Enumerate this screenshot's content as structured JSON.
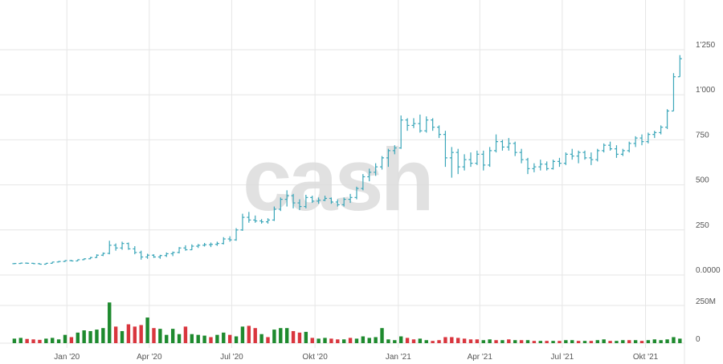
{
  "watermark": "cash",
  "colors": {
    "price": "#3aa6b9",
    "volume_up": "#1e8a2e",
    "volume_down": "#d9363e",
    "grid": "#e6e6e6",
    "text": "#555555"
  },
  "chart_data": {
    "type": "ohlc",
    "grid": true,
    "price_axis": {
      "ticks": [
        {
          "value": 0,
          "label": "0.0000"
        },
        {
          "value": 250,
          "label": "250"
        },
        {
          "value": 500,
          "label": "500"
        },
        {
          "value": 750,
          "label": "750"
        },
        {
          "value": 1000,
          "label": "1'000"
        },
        {
          "value": 1250,
          "label": "1'250"
        }
      ],
      "range": [
        0,
        1450
      ]
    },
    "volume_axis": {
      "ticks": [
        {
          "value": 0,
          "label": "0"
        },
        {
          "value": 250,
          "label": "250M"
        }
      ],
      "range": [
        0,
        280
      ]
    },
    "x_ticks": [
      {
        "date": "2020-01-01",
        "label": "Jan '20"
      },
      {
        "date": "2020-04-01",
        "label": "Apr '20"
      },
      {
        "date": "2020-07-01",
        "label": "Jul '20"
      },
      {
        "date": "2020-10-01",
        "label": "Okt '20"
      },
      {
        "date": "2021-01-01",
        "label": "Jan '21"
      },
      {
        "date": "2021-04-01",
        "label": "Apr '21"
      },
      {
        "date": "2021-07-01",
        "label": "Jul '21"
      },
      {
        "date": "2021-10-01",
        "label": "Okt '21"
      }
    ],
    "x_range": [
      "2019-10-28",
      "2021-11-13"
    ],
    "bars": [
      {
        "date": "2019-11-04",
        "o": 63,
        "h": 66,
        "l": 60,
        "c": 64,
        "v": 30,
        "up": true
      },
      {
        "date": "2019-11-11",
        "o": 64,
        "h": 68,
        "l": 62,
        "c": 66,
        "v": 35,
        "up": true
      },
      {
        "date": "2019-11-18",
        "o": 66,
        "h": 69,
        "l": 62,
        "c": 65,
        "v": 28,
        "up": false
      },
      {
        "date": "2019-11-25",
        "o": 65,
        "h": 67,
        "l": 61,
        "c": 63,
        "v": 25,
        "up": false
      },
      {
        "date": "2019-12-02",
        "o": 63,
        "h": 65,
        "l": 58,
        "c": 60,
        "v": 22,
        "up": false
      },
      {
        "date": "2019-12-09",
        "o": 60,
        "h": 66,
        "l": 59,
        "c": 65,
        "v": 30,
        "up": true
      },
      {
        "date": "2019-12-16",
        "o": 65,
        "h": 73,
        "l": 64,
        "c": 72,
        "v": 35,
        "up": true
      },
      {
        "date": "2019-12-23",
        "o": 72,
        "h": 78,
        "l": 70,
        "c": 75,
        "v": 25,
        "up": true
      },
      {
        "date": "2019-12-30",
        "o": 75,
        "h": 82,
        "l": 73,
        "c": 80,
        "v": 55,
        "up": true
      },
      {
        "date": "2020-01-06",
        "o": 80,
        "h": 84,
        "l": 76,
        "c": 78,
        "v": 40,
        "up": false
      },
      {
        "date": "2020-01-13",
        "o": 78,
        "h": 86,
        "l": 77,
        "c": 85,
        "v": 70,
        "up": true
      },
      {
        "date": "2020-01-20",
        "o": 85,
        "h": 92,
        "l": 83,
        "c": 90,
        "v": 85,
        "up": true
      },
      {
        "date": "2020-01-27",
        "o": 90,
        "h": 100,
        "l": 88,
        "c": 97,
        "v": 80,
        "up": true
      },
      {
        "date": "2020-02-03",
        "o": 97,
        "h": 115,
        "l": 95,
        "c": 110,
        "v": 90,
        "up": true
      },
      {
        "date": "2020-02-10",
        "o": 110,
        "h": 125,
        "l": 105,
        "c": 120,
        "v": 100,
        "up": true
      },
      {
        "date": "2020-02-17",
        "o": 120,
        "h": 190,
        "l": 115,
        "c": 165,
        "v": 270,
        "up": true
      },
      {
        "date": "2020-02-24",
        "o": 165,
        "h": 175,
        "l": 135,
        "c": 150,
        "v": 110,
        "up": false
      },
      {
        "date": "2020-03-02",
        "o": 150,
        "h": 185,
        "l": 140,
        "c": 175,
        "v": 80,
        "up": true
      },
      {
        "date": "2020-03-09",
        "o": 175,
        "h": 180,
        "l": 140,
        "c": 145,
        "v": 125,
        "up": false
      },
      {
        "date": "2020-03-16",
        "o": 145,
        "h": 160,
        "l": 115,
        "c": 125,
        "v": 110,
        "up": false
      },
      {
        "date": "2020-03-23",
        "o": 125,
        "h": 135,
        "l": 85,
        "c": 100,
        "v": 120,
        "up": false
      },
      {
        "date": "2020-03-30",
        "o": 100,
        "h": 118,
        "l": 90,
        "c": 110,
        "v": 170,
        "up": true
      },
      {
        "date": "2020-04-06",
        "o": 110,
        "h": 115,
        "l": 95,
        "c": 100,
        "v": 100,
        "up": false
      },
      {
        "date": "2020-04-13",
        "o": 100,
        "h": 112,
        "l": 90,
        "c": 108,
        "v": 95,
        "up": true
      },
      {
        "date": "2020-04-20",
        "o": 108,
        "h": 125,
        "l": 100,
        "c": 118,
        "v": 55,
        "up": true
      },
      {
        "date": "2020-04-27",
        "o": 118,
        "h": 130,
        "l": 105,
        "c": 125,
        "v": 95,
        "up": true
      },
      {
        "date": "2020-05-04",
        "o": 125,
        "h": 155,
        "l": 120,
        "c": 150,
        "v": 60,
        "up": true
      },
      {
        "date": "2020-05-11",
        "o": 150,
        "h": 165,
        "l": 135,
        "c": 140,
        "v": 110,
        "up": false
      },
      {
        "date": "2020-05-18",
        "o": 140,
        "h": 170,
        "l": 138,
        "c": 160,
        "v": 60,
        "up": true
      },
      {
        "date": "2020-05-25",
        "o": 160,
        "h": 172,
        "l": 150,
        "c": 165,
        "v": 55,
        "up": true
      },
      {
        "date": "2020-06-01",
        "o": 165,
        "h": 178,
        "l": 158,
        "c": 168,
        "v": 50,
        "up": true
      },
      {
        "date": "2020-06-08",
        "o": 168,
        "h": 180,
        "l": 155,
        "c": 170,
        "v": 40,
        "up": false
      },
      {
        "date": "2020-06-15",
        "o": 170,
        "h": 185,
        "l": 162,
        "c": 175,
        "v": 55,
        "up": true
      },
      {
        "date": "2020-06-22",
        "o": 175,
        "h": 210,
        "l": 170,
        "c": 200,
        "v": 70,
        "up": true
      },
      {
        "date": "2020-06-29",
        "o": 200,
        "h": 215,
        "l": 185,
        "c": 195,
        "v": 55,
        "up": false
      },
      {
        "date": "2020-07-06",
        "o": 195,
        "h": 260,
        "l": 190,
        "c": 250,
        "v": 45,
        "up": true
      },
      {
        "date": "2020-07-13",
        "o": 250,
        "h": 340,
        "l": 245,
        "c": 320,
        "v": 110,
        "up": true
      },
      {
        "date": "2020-07-20",
        "o": 320,
        "h": 350,
        "l": 290,
        "c": 305,
        "v": 115,
        "up": false
      },
      {
        "date": "2020-07-27",
        "o": 305,
        "h": 330,
        "l": 290,
        "c": 300,
        "v": 100,
        "up": false
      },
      {
        "date": "2020-08-03",
        "o": 300,
        "h": 310,
        "l": 285,
        "c": 295,
        "v": 60,
        "up": true
      },
      {
        "date": "2020-08-10",
        "o": 295,
        "h": 315,
        "l": 285,
        "c": 305,
        "v": 40,
        "up": false
      },
      {
        "date": "2020-08-17",
        "o": 305,
        "h": 380,
        "l": 300,
        "c": 365,
        "v": 90,
        "up": true
      },
      {
        "date": "2020-08-24",
        "o": 365,
        "h": 430,
        "l": 355,
        "c": 420,
        "v": 100,
        "up": true
      },
      {
        "date": "2020-08-31",
        "o": 420,
        "h": 470,
        "l": 380,
        "c": 440,
        "v": 100,
        "up": true
      },
      {
        "date": "2020-09-07",
        "o": 440,
        "h": 450,
        "l": 370,
        "c": 400,
        "v": 80,
        "up": false
      },
      {
        "date": "2020-09-14",
        "o": 400,
        "h": 420,
        "l": 360,
        "c": 380,
        "v": 70,
        "up": false
      },
      {
        "date": "2020-09-21",
        "o": 380,
        "h": 445,
        "l": 370,
        "c": 430,
        "v": 75,
        "up": true
      },
      {
        "date": "2020-09-28",
        "o": 430,
        "h": 440,
        "l": 400,
        "c": 410,
        "v": 35,
        "up": false
      },
      {
        "date": "2020-10-05",
        "o": 410,
        "h": 430,
        "l": 395,
        "c": 415,
        "v": 30,
        "up": true
      },
      {
        "date": "2020-10-12",
        "o": 415,
        "h": 440,
        "l": 410,
        "c": 425,
        "v": 35,
        "up": true
      },
      {
        "date": "2020-10-19",
        "o": 425,
        "h": 430,
        "l": 395,
        "c": 405,
        "v": 30,
        "up": false
      },
      {
        "date": "2020-10-26",
        "o": 405,
        "h": 420,
        "l": 380,
        "c": 390,
        "v": 25,
        "up": false
      },
      {
        "date": "2020-11-02",
        "o": 390,
        "h": 430,
        "l": 380,
        "c": 420,
        "v": 25,
        "up": true
      },
      {
        "date": "2020-11-09",
        "o": 420,
        "h": 450,
        "l": 400,
        "c": 430,
        "v": 35,
        "up": false
      },
      {
        "date": "2020-11-16",
        "o": 430,
        "h": 490,
        "l": 420,
        "c": 480,
        "v": 30,
        "up": true
      },
      {
        "date": "2020-11-23",
        "o": 480,
        "h": 560,
        "l": 470,
        "c": 545,
        "v": 45,
        "up": true
      },
      {
        "date": "2020-11-30",
        "o": 545,
        "h": 590,
        "l": 520,
        "c": 570,
        "v": 35,
        "up": true
      },
      {
        "date": "2020-12-07",
        "o": 570,
        "h": 620,
        "l": 550,
        "c": 600,
        "v": 40,
        "up": true
      },
      {
        "date": "2020-12-14",
        "o": 600,
        "h": 660,
        "l": 585,
        "c": 650,
        "v": 100,
        "up": true
      },
      {
        "date": "2020-12-21",
        "o": 650,
        "h": 700,
        "l": 600,
        "c": 690,
        "v": 25,
        "up": true
      },
      {
        "date": "2020-12-28",
        "o": 690,
        "h": 720,
        "l": 670,
        "c": 705,
        "v": 20,
        "up": true
      },
      {
        "date": "2021-01-04",
        "o": 705,
        "h": 885,
        "l": 700,
        "c": 860,
        "v": 45,
        "up": true
      },
      {
        "date": "2021-01-11",
        "o": 860,
        "h": 870,
        "l": 800,
        "c": 830,
        "v": 35,
        "up": false
      },
      {
        "date": "2021-01-18",
        "o": 830,
        "h": 870,
        "l": 815,
        "c": 840,
        "v": 25,
        "up": false
      },
      {
        "date": "2021-01-25",
        "o": 840,
        "h": 890,
        "l": 790,
        "c": 800,
        "v": 30,
        "up": true
      },
      {
        "date": "2021-02-01",
        "o": 800,
        "h": 880,
        "l": 790,
        "c": 860,
        "v": 20,
        "up": true
      },
      {
        "date": "2021-02-08",
        "o": 860,
        "h": 870,
        "l": 800,
        "c": 820,
        "v": 15,
        "up": false
      },
      {
        "date": "2021-02-15",
        "o": 820,
        "h": 830,
        "l": 760,
        "c": 780,
        "v": 20,
        "up": false
      },
      {
        "date": "2021-02-22",
        "o": 780,
        "h": 800,
        "l": 600,
        "c": 650,
        "v": 40,
        "up": false
      },
      {
        "date": "2021-03-01",
        "o": 650,
        "h": 710,
        "l": 540,
        "c": 680,
        "v": 40,
        "up": false
      },
      {
        "date": "2021-03-08",
        "o": 680,
        "h": 700,
        "l": 560,
        "c": 600,
        "v": 35,
        "up": false
      },
      {
        "date": "2021-03-15",
        "o": 600,
        "h": 670,
        "l": 580,
        "c": 640,
        "v": 30,
        "up": false
      },
      {
        "date": "2021-03-22",
        "o": 640,
        "h": 680,
        "l": 600,
        "c": 620,
        "v": 25,
        "up": false
      },
      {
        "date": "2021-03-29",
        "o": 620,
        "h": 690,
        "l": 610,
        "c": 670,
        "v": 25,
        "up": false
      },
      {
        "date": "2021-04-05",
        "o": 670,
        "h": 690,
        "l": 580,
        "c": 610,
        "v": 20,
        "up": true
      },
      {
        "date": "2021-04-12",
        "o": 610,
        "h": 710,
        "l": 600,
        "c": 690,
        "v": 25,
        "up": true
      },
      {
        "date": "2021-04-19",
        "o": 690,
        "h": 780,
        "l": 680,
        "c": 740,
        "v": 20,
        "up": false
      },
      {
        "date": "2021-04-26",
        "o": 740,
        "h": 750,
        "l": 690,
        "c": 710,
        "v": 20,
        "up": true
      },
      {
        "date": "2021-05-03",
        "o": 710,
        "h": 760,
        "l": 690,
        "c": 730,
        "v": 25,
        "up": false
      },
      {
        "date": "2021-05-10",
        "o": 730,
        "h": 740,
        "l": 660,
        "c": 680,
        "v": 20,
        "up": true
      },
      {
        "date": "2021-05-17",
        "o": 680,
        "h": 700,
        "l": 620,
        "c": 640,
        "v": 20,
        "up": false
      },
      {
        "date": "2021-05-24",
        "o": 640,
        "h": 650,
        "l": 560,
        "c": 590,
        "v": 20,
        "up": true
      },
      {
        "date": "2021-05-31",
        "o": 590,
        "h": 620,
        "l": 570,
        "c": 600,
        "v": 15,
        "up": false
      },
      {
        "date": "2021-06-07",
        "o": 600,
        "h": 640,
        "l": 580,
        "c": 615,
        "v": 15,
        "up": true
      },
      {
        "date": "2021-06-14",
        "o": 615,
        "h": 630,
        "l": 580,
        "c": 590,
        "v": 15,
        "up": false
      },
      {
        "date": "2021-06-21",
        "o": 590,
        "h": 640,
        "l": 585,
        "c": 630,
        "v": 15,
        "up": true
      },
      {
        "date": "2021-06-28",
        "o": 630,
        "h": 650,
        "l": 600,
        "c": 620,
        "v": 15,
        "up": false
      },
      {
        "date": "2021-07-05",
        "o": 620,
        "h": 680,
        "l": 610,
        "c": 670,
        "v": 20,
        "up": true
      },
      {
        "date": "2021-07-12",
        "o": 670,
        "h": 700,
        "l": 640,
        "c": 660,
        "v": 20,
        "up": true
      },
      {
        "date": "2021-07-19",
        "o": 660,
        "h": 690,
        "l": 620,
        "c": 680,
        "v": 15,
        "up": false
      },
      {
        "date": "2021-07-26",
        "o": 680,
        "h": 690,
        "l": 640,
        "c": 650,
        "v": 15,
        "up": true
      },
      {
        "date": "2021-08-02",
        "o": 650,
        "h": 680,
        "l": 610,
        "c": 640,
        "v": 15,
        "up": false
      },
      {
        "date": "2021-08-09",
        "o": 640,
        "h": 700,
        "l": 630,
        "c": 690,
        "v": 20,
        "up": true
      },
      {
        "date": "2021-08-16",
        "o": 690,
        "h": 730,
        "l": 680,
        "c": 720,
        "v": 25,
        "up": true
      },
      {
        "date": "2021-08-23",
        "o": 720,
        "h": 740,
        "l": 690,
        "c": 700,
        "v": 15,
        "up": false
      },
      {
        "date": "2021-08-30",
        "o": 700,
        "h": 720,
        "l": 650,
        "c": 670,
        "v": 15,
        "up": true
      },
      {
        "date": "2021-09-06",
        "o": 670,
        "h": 700,
        "l": 660,
        "c": 690,
        "v": 20,
        "up": true
      },
      {
        "date": "2021-09-13",
        "o": 690,
        "h": 740,
        "l": 680,
        "c": 730,
        "v": 20,
        "up": false
      },
      {
        "date": "2021-09-20",
        "o": 730,
        "h": 770,
        "l": 710,
        "c": 760,
        "v": 20,
        "up": true
      },
      {
        "date": "2021-09-27",
        "o": 760,
        "h": 780,
        "l": 720,
        "c": 740,
        "v": 15,
        "up": false
      },
      {
        "date": "2021-10-04",
        "o": 740,
        "h": 790,
        "l": 730,
        "c": 780,
        "v": 20,
        "up": true
      },
      {
        "date": "2021-10-11",
        "o": 780,
        "h": 800,
        "l": 760,
        "c": 790,
        "v": 25,
        "up": true
      },
      {
        "date": "2021-10-18",
        "o": 790,
        "h": 830,
        "l": 780,
        "c": 820,
        "v": 20,
        "up": true
      },
      {
        "date": "2021-10-25",
        "o": 820,
        "h": 920,
        "l": 810,
        "c": 910,
        "v": 25,
        "up": true
      },
      {
        "date": "2021-11-01",
        "o": 910,
        "h": 1120,
        "l": 940,
        "c": 1100,
        "v": 40,
        "up": true
      },
      {
        "date": "2021-11-08",
        "o": 1100,
        "h": 1220,
        "l": 1120,
        "c": 1200,
        "v": 30,
        "up": true
      }
    ]
  }
}
